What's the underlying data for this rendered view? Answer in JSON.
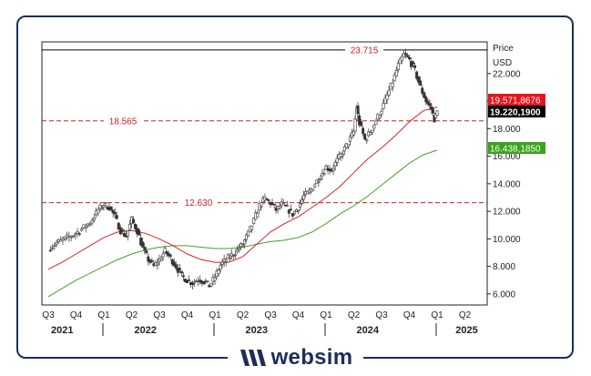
{
  "brand": {
    "name": "websim",
    "logo_icon": "w-slash-mark-icon",
    "color": "#1d2d5c"
  },
  "chart_data": {
    "type": "candlestick",
    "title": "",
    "price_label": "Price",
    "currency_label": "USD",
    "ylim": [
      5.2,
      24.3
    ],
    "yticks": [
      6,
      8,
      10,
      12,
      14,
      16,
      18,
      20,
      22
    ],
    "ytick_labels": [
      "6.000",
      "8.000",
      "10.000",
      "12.000",
      "14.000",
      "16.000",
      "18.000",
      "20.000",
      "22.000"
    ],
    "x_quarter_labels": [
      "Q3",
      "Q4",
      "Q1",
      "Q2",
      "Q3",
      "Q4",
      "Q1",
      "Q2",
      "Q3",
      "Q4",
      "Q1",
      "Q2",
      "Q3",
      "Q4",
      "Q1",
      "Q2"
    ],
    "x_year_labels": [
      {
        "label": "2021",
        "quarter_index": 0.5
      },
      {
        "label": "2022",
        "quarter_index": 3.5
      },
      {
        "label": "2023",
        "quarter_index": 7.5
      },
      {
        "label": "2024",
        "quarter_index": 11.5
      },
      {
        "label": "2025",
        "quarter_index": 15.0
      }
    ],
    "horizontal_lines": [
      {
        "label": "23.715",
        "value": 23.715,
        "color": "#000000",
        "style": "solid"
      },
      {
        "label": "18.565",
        "value": 18.565,
        "color": "#cc2222",
        "style": "dashed"
      },
      {
        "label": "12.630",
        "value": 12.63,
        "color": "#cc2222",
        "style": "dashed"
      }
    ],
    "value_tags": [
      {
        "label": "19.571,8676",
        "value": 19.57,
        "bg": "#e8141c",
        "fg": "#ffffff"
      },
      {
        "label": "19.220,1900",
        "value": 19.22,
        "bg": "#000000",
        "fg": "#ffffff"
      },
      {
        "label": "16.438,1850",
        "value": 16.44,
        "bg": "#3aa31a",
        "fg": "#ffffff"
      }
    ],
    "price_series": {
      "name": "",
      "color": "#333333",
      "points": [
        {
          "t": 0.0,
          "v": 9.3
        },
        {
          "t": 0.3,
          "v": 9.7
        },
        {
          "t": 0.6,
          "v": 10.0
        },
        {
          "t": 0.9,
          "v": 10.3
        },
        {
          "t": 1.2,
          "v": 10.7
        },
        {
          "t": 1.5,
          "v": 11.2
        },
        {
          "t": 1.8,
          "v": 12.1
        },
        {
          "t": 2.0,
          "v": 12.5
        },
        {
          "t": 2.2,
          "v": 12.3
        },
        {
          "t": 2.4,
          "v": 11.6
        },
        {
          "t": 2.6,
          "v": 10.6
        },
        {
          "t": 2.8,
          "v": 10.2
        },
        {
          "t": 3.0,
          "v": 11.4
        },
        {
          "t": 3.2,
          "v": 10.6
        },
        {
          "t": 3.4,
          "v": 9.3
        },
        {
          "t": 3.6,
          "v": 8.5
        },
        {
          "t": 3.8,
          "v": 8.0
        },
        {
          "t": 4.0,
          "v": 8.5
        },
        {
          "t": 4.2,
          "v": 9.1
        },
        {
          "t": 4.4,
          "v": 8.6
        },
        {
          "t": 4.6,
          "v": 8.0
        },
        {
          "t": 4.8,
          "v": 7.3
        },
        {
          "t": 5.0,
          "v": 7.0
        },
        {
          "t": 5.2,
          "v": 6.8
        },
        {
          "t": 5.4,
          "v": 7.1
        },
        {
          "t": 5.6,
          "v": 6.9
        },
        {
          "t": 5.8,
          "v": 6.6
        },
        {
          "t": 6.0,
          "v": 7.2
        },
        {
          "t": 6.2,
          "v": 8.1
        },
        {
          "t": 6.4,
          "v": 8.5
        },
        {
          "t": 6.6,
          "v": 8.8
        },
        {
          "t": 6.8,
          "v": 9.2
        },
        {
          "t": 7.0,
          "v": 9.6
        },
        {
          "t": 7.2,
          "v": 10.4
        },
        {
          "t": 7.4,
          "v": 11.3
        },
        {
          "t": 7.6,
          "v": 12.4
        },
        {
          "t": 7.8,
          "v": 12.9
        },
        {
          "t": 8.0,
          "v": 12.6
        },
        {
          "t": 8.2,
          "v": 12.1
        },
        {
          "t": 8.4,
          "v": 12.5
        },
        {
          "t": 8.6,
          "v": 12.2
        },
        {
          "t": 8.8,
          "v": 11.8
        },
        {
          "t": 9.0,
          "v": 12.3
        },
        {
          "t": 9.2,
          "v": 13.1
        },
        {
          "t": 9.4,
          "v": 13.4
        },
        {
          "t": 9.6,
          "v": 14.0
        },
        {
          "t": 9.8,
          "v": 14.6
        },
        {
          "t": 10.0,
          "v": 15.2
        },
        {
          "t": 10.2,
          "v": 15.0
        },
        {
          "t": 10.4,
          "v": 15.7
        },
        {
          "t": 10.6,
          "v": 16.3
        },
        {
          "t": 10.8,
          "v": 17.0
        },
        {
          "t": 11.0,
          "v": 17.8
        },
        {
          "t": 11.1,
          "v": 19.6
        },
        {
          "t": 11.2,
          "v": 18.4
        },
        {
          "t": 11.4,
          "v": 17.2
        },
        {
          "t": 11.6,
          "v": 17.8
        },
        {
          "t": 11.8,
          "v": 18.6
        },
        {
          "t": 12.0,
          "v": 19.4
        },
        {
          "t": 12.2,
          "v": 20.4
        },
        {
          "t": 12.4,
          "v": 21.4
        },
        {
          "t": 12.6,
          "v": 22.6
        },
        {
          "t": 12.8,
          "v": 23.4
        },
        {
          "t": 13.0,
          "v": 23.0
        },
        {
          "t": 13.2,
          "v": 22.2
        },
        {
          "t": 13.4,
          "v": 21.0
        },
        {
          "t": 13.6,
          "v": 20.0
        },
        {
          "t": 13.8,
          "v": 19.4
        },
        {
          "t": 13.9,
          "v": 18.7
        },
        {
          "t": 14.0,
          "v": 19.2
        }
      ]
    },
    "ma_red": {
      "name": "",
      "color": "#dd2222",
      "points": [
        {
          "t": 0.0,
          "v": 7.8
        },
        {
          "t": 0.5,
          "v": 8.3
        },
        {
          "t": 1.0,
          "v": 8.9
        },
        {
          "t": 1.5,
          "v": 9.5
        },
        {
          "t": 2.0,
          "v": 10.1
        },
        {
          "t": 2.5,
          "v": 10.5
        },
        {
          "t": 3.0,
          "v": 10.6
        },
        {
          "t": 3.5,
          "v": 10.4
        },
        {
          "t": 4.0,
          "v": 10.0
        },
        {
          "t": 4.5,
          "v": 9.5
        },
        {
          "t": 5.0,
          "v": 8.9
        },
        {
          "t": 5.5,
          "v": 8.5
        },
        {
          "t": 6.0,
          "v": 8.3
        },
        {
          "t": 6.5,
          "v": 8.3
        },
        {
          "t": 7.0,
          "v": 8.7
        },
        {
          "t": 7.5,
          "v": 9.6
        },
        {
          "t": 8.0,
          "v": 10.5
        },
        {
          "t": 8.5,
          "v": 11.1
        },
        {
          "t": 9.0,
          "v": 11.6
        },
        {
          "t": 9.5,
          "v": 12.3
        },
        {
          "t": 10.0,
          "v": 13.0
        },
        {
          "t": 10.5,
          "v": 13.8
        },
        {
          "t": 11.0,
          "v": 14.8
        },
        {
          "t": 11.5,
          "v": 15.8
        },
        {
          "t": 12.0,
          "v": 16.6
        },
        {
          "t": 12.5,
          "v": 17.5
        },
        {
          "t": 13.0,
          "v": 18.5
        },
        {
          "t": 13.5,
          "v": 19.3
        },
        {
          "t": 14.0,
          "v": 19.57
        }
      ]
    },
    "ma_green": {
      "name": "",
      "color": "#4a9e2a",
      "points": [
        {
          "t": 0.0,
          "v": 5.8
        },
        {
          "t": 0.5,
          "v": 6.4
        },
        {
          "t": 1.0,
          "v": 7.0
        },
        {
          "t": 1.5,
          "v": 7.5
        },
        {
          "t": 2.0,
          "v": 8.0
        },
        {
          "t": 2.5,
          "v": 8.5
        },
        {
          "t": 3.0,
          "v": 8.9
        },
        {
          "t": 3.5,
          "v": 9.2
        },
        {
          "t": 4.0,
          "v": 9.4
        },
        {
          "t": 4.5,
          "v": 9.5
        },
        {
          "t": 5.0,
          "v": 9.5
        },
        {
          "t": 5.5,
          "v": 9.4
        },
        {
          "t": 6.0,
          "v": 9.3
        },
        {
          "t": 6.5,
          "v": 9.3
        },
        {
          "t": 7.0,
          "v": 9.4
        },
        {
          "t": 7.5,
          "v": 9.6
        },
        {
          "t": 8.0,
          "v": 9.8
        },
        {
          "t": 8.5,
          "v": 9.9
        },
        {
          "t": 9.0,
          "v": 10.1
        },
        {
          "t": 9.5,
          "v": 10.5
        },
        {
          "t": 10.0,
          "v": 11.1
        },
        {
          "t": 10.5,
          "v": 11.8
        },
        {
          "t": 11.0,
          "v": 12.4
        },
        {
          "t": 11.5,
          "v": 13.1
        },
        {
          "t": 12.0,
          "v": 13.9
        },
        {
          "t": 12.5,
          "v": 14.7
        },
        {
          "t": 13.0,
          "v": 15.5
        },
        {
          "t": 13.5,
          "v": 16.1
        },
        {
          "t": 14.0,
          "v": 16.44
        }
      ]
    }
  }
}
